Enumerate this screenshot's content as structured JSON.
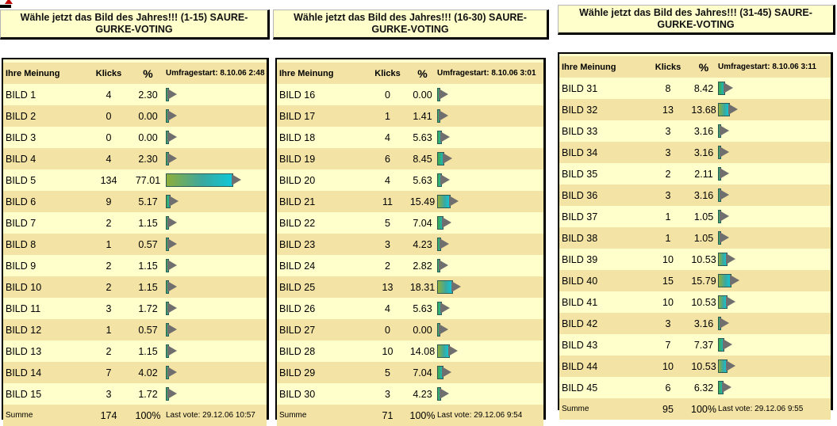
{
  "polls": [
    {
      "title": "Wähle jetzt das Bild des Jahres!!! (1-15) SAURE-GURKE-VOTING",
      "header": {
        "name": "Ihre Meinung",
        "klicks": "Klicks",
        "pct": "%",
        "info": "Umfragestart: 8.10.06 2:48"
      },
      "rows": [
        {
          "name": "BILD 1",
          "klicks": "4",
          "pct": "2.30"
        },
        {
          "name": "BILD 2",
          "klicks": "0",
          "pct": "0.00"
        },
        {
          "name": "BILD 3",
          "klicks": "0",
          "pct": "0.00"
        },
        {
          "name": "BILD 4",
          "klicks": "4",
          "pct": "2.30"
        },
        {
          "name": "BILD 5",
          "klicks": "134",
          "pct": "77.01"
        },
        {
          "name": "BILD 6",
          "klicks": "9",
          "pct": "5.17"
        },
        {
          "name": "BILD 7",
          "klicks": "2",
          "pct": "1.15"
        },
        {
          "name": "BILD 8",
          "klicks": "1",
          "pct": "0.57"
        },
        {
          "name": "BILD 9",
          "klicks": "2",
          "pct": "1.15"
        },
        {
          "name": "BILD 10",
          "klicks": "2",
          "pct": "1.15"
        },
        {
          "name": "BILD 11",
          "klicks": "3",
          "pct": "1.72"
        },
        {
          "name": "BILD 12",
          "klicks": "1",
          "pct": "0.57"
        },
        {
          "name": "BILD 13",
          "klicks": "2",
          "pct": "1.15"
        },
        {
          "name": "BILD 14",
          "klicks": "7",
          "pct": "4.02"
        },
        {
          "name": "BILD 15",
          "klicks": "3",
          "pct": "1.72"
        }
      ],
      "footer": {
        "name": "Summe",
        "klicks": "174",
        "pct": "100%",
        "info": "Last vote: 29.12.06 10:57"
      }
    },
    {
      "title": "Wähle jetzt das Bild des Jahres!!! (16-30) SAURE-GURKE-VOTING",
      "header": {
        "name": "Ihre Meinung",
        "klicks": "Klicks",
        "pct": "%",
        "info": "Umfragestart: 8.10.06 3:01"
      },
      "rows": [
        {
          "name": "BILD 16",
          "klicks": "0",
          "pct": "0.00"
        },
        {
          "name": "BILD 17",
          "klicks": "1",
          "pct": "1.41"
        },
        {
          "name": "BILD 18",
          "klicks": "4",
          "pct": "5.63"
        },
        {
          "name": "BILD 19",
          "klicks": "6",
          "pct": "8.45"
        },
        {
          "name": "BILD 20",
          "klicks": "4",
          "pct": "5.63"
        },
        {
          "name": "BILD 21",
          "klicks": "11",
          "pct": "15.49"
        },
        {
          "name": "BILD 22",
          "klicks": "5",
          "pct": "7.04"
        },
        {
          "name": "BILD 23",
          "klicks": "3",
          "pct": "4.23"
        },
        {
          "name": "BILD 24",
          "klicks": "2",
          "pct": "2.82"
        },
        {
          "name": "BILD 25",
          "klicks": "13",
          "pct": "18.31"
        },
        {
          "name": "BILD 26",
          "klicks": "4",
          "pct": "5.63"
        },
        {
          "name": "BILD 27",
          "klicks": "0",
          "pct": "0.00"
        },
        {
          "name": "BILD 28",
          "klicks": "10",
          "pct": "14.08"
        },
        {
          "name": "BILD 29",
          "klicks": "5",
          "pct": "7.04"
        },
        {
          "name": "BILD 30",
          "klicks": "3",
          "pct": "4.23"
        }
      ],
      "footer": {
        "name": "Summe",
        "klicks": "71",
        "pct": "100%",
        "info": "Last vote: 29.12.06 9:54"
      }
    },
    {
      "title": "Wähle jetzt das Bild des Jahres!!! (31-45) SAURE-GURKE-VOTING",
      "header": {
        "name": "Ihre Meinung",
        "klicks": "Klicks",
        "pct": "%",
        "info": "Umfragestart: 8.10.06 3:11"
      },
      "rows": [
        {
          "name": "BILD 31",
          "klicks": "8",
          "pct": "8.42"
        },
        {
          "name": "BILD 32",
          "klicks": "13",
          "pct": "13.68"
        },
        {
          "name": "BILD 33",
          "klicks": "3",
          "pct": "3.16"
        },
        {
          "name": "BILD 34",
          "klicks": "3",
          "pct": "3.16"
        },
        {
          "name": "BILD 35",
          "klicks": "2",
          "pct": "2.11"
        },
        {
          "name": "BILD 36",
          "klicks": "3",
          "pct": "3.16"
        },
        {
          "name": "BILD 37",
          "klicks": "1",
          "pct": "1.05"
        },
        {
          "name": "BILD 38",
          "klicks": "1",
          "pct": "1.05"
        },
        {
          "name": "BILD 39",
          "klicks": "10",
          "pct": "10.53"
        },
        {
          "name": "BILD 40",
          "klicks": "15",
          "pct": "15.79"
        },
        {
          "name": "BILD 41",
          "klicks": "10",
          "pct": "10.53"
        },
        {
          "name": "BILD 42",
          "klicks": "3",
          "pct": "3.16"
        },
        {
          "name": "BILD 43",
          "klicks": "7",
          "pct": "7.37"
        },
        {
          "name": "BILD 44",
          "klicks": "10",
          "pct": "10.53"
        },
        {
          "name": "BILD 45",
          "klicks": "6",
          "pct": "6.32"
        }
      ],
      "footer": {
        "name": "Summe",
        "klicks": "95",
        "pct": "100%",
        "info": "Last vote: 29.12.06 9:55"
      }
    }
  ]
}
